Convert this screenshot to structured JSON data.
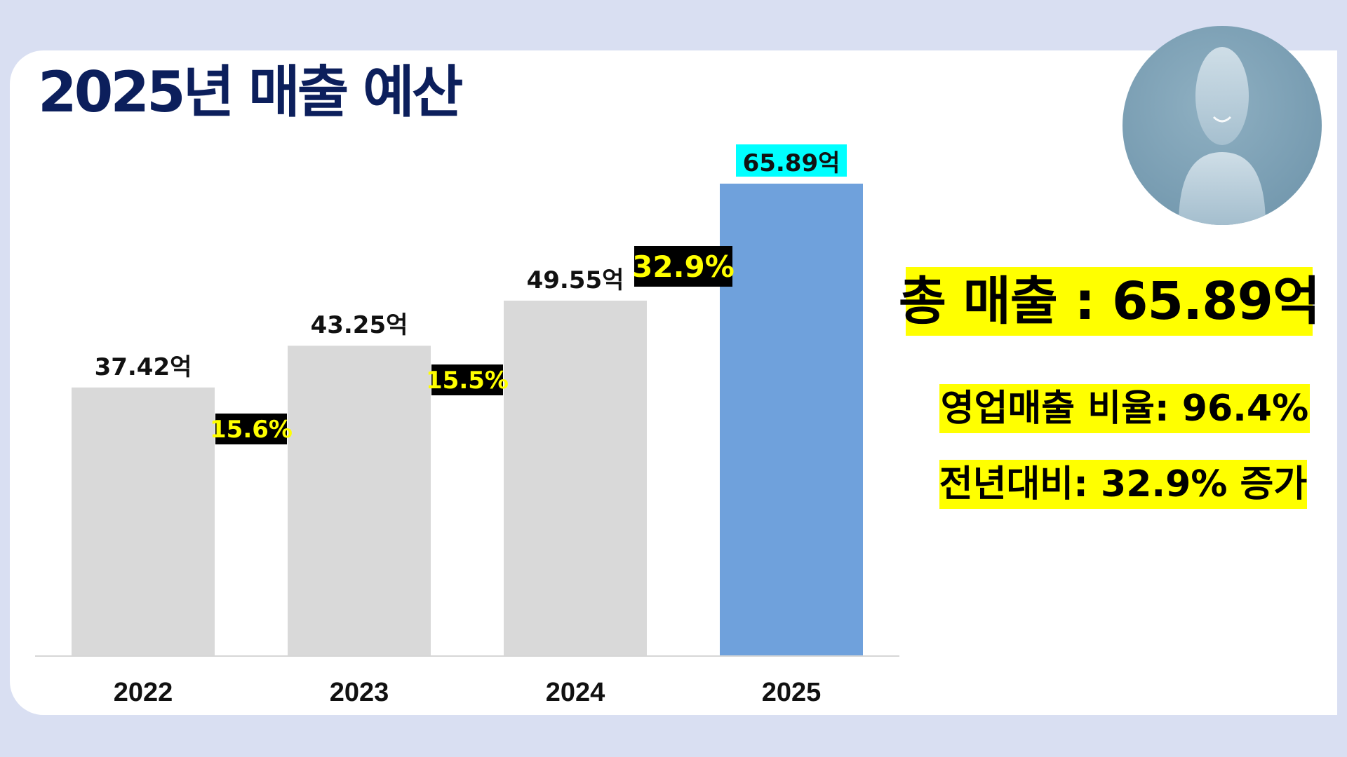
{
  "slide": {
    "title": "2025년 매출 예산"
  },
  "metrics": {
    "total": "총 매출 : 65.89억",
    "operating_ratio": "영업매출 비율: 96.4%",
    "yoy": "전년대비: 32.9% 증가"
  },
  "colors": {
    "bar_past": "#d9d9d9",
    "bar_current": "#6fa1dc",
    "growth_label_bg": "#000000",
    "growth_label_text": "#ffff00",
    "current_label_bg": "#00ffff",
    "highlight": "#ffff00",
    "title": "#0c1f5c"
  },
  "chart_data": {
    "type": "bar",
    "title": "",
    "xlabel": "",
    "ylabel": "",
    "categories": [
      "2022",
      "2023",
      "2024",
      "2025"
    ],
    "values": [
      37.42,
      43.25,
      49.55,
      65.89
    ],
    "value_labels": [
      "37.42억",
      "43.25억",
      "49.55억",
      "65.89억"
    ],
    "growth_labels": [
      "15.6%",
      "15.5%",
      "32.9%"
    ],
    "ylim": [
      0,
      65.89
    ],
    "grid": false,
    "legend": "none"
  }
}
